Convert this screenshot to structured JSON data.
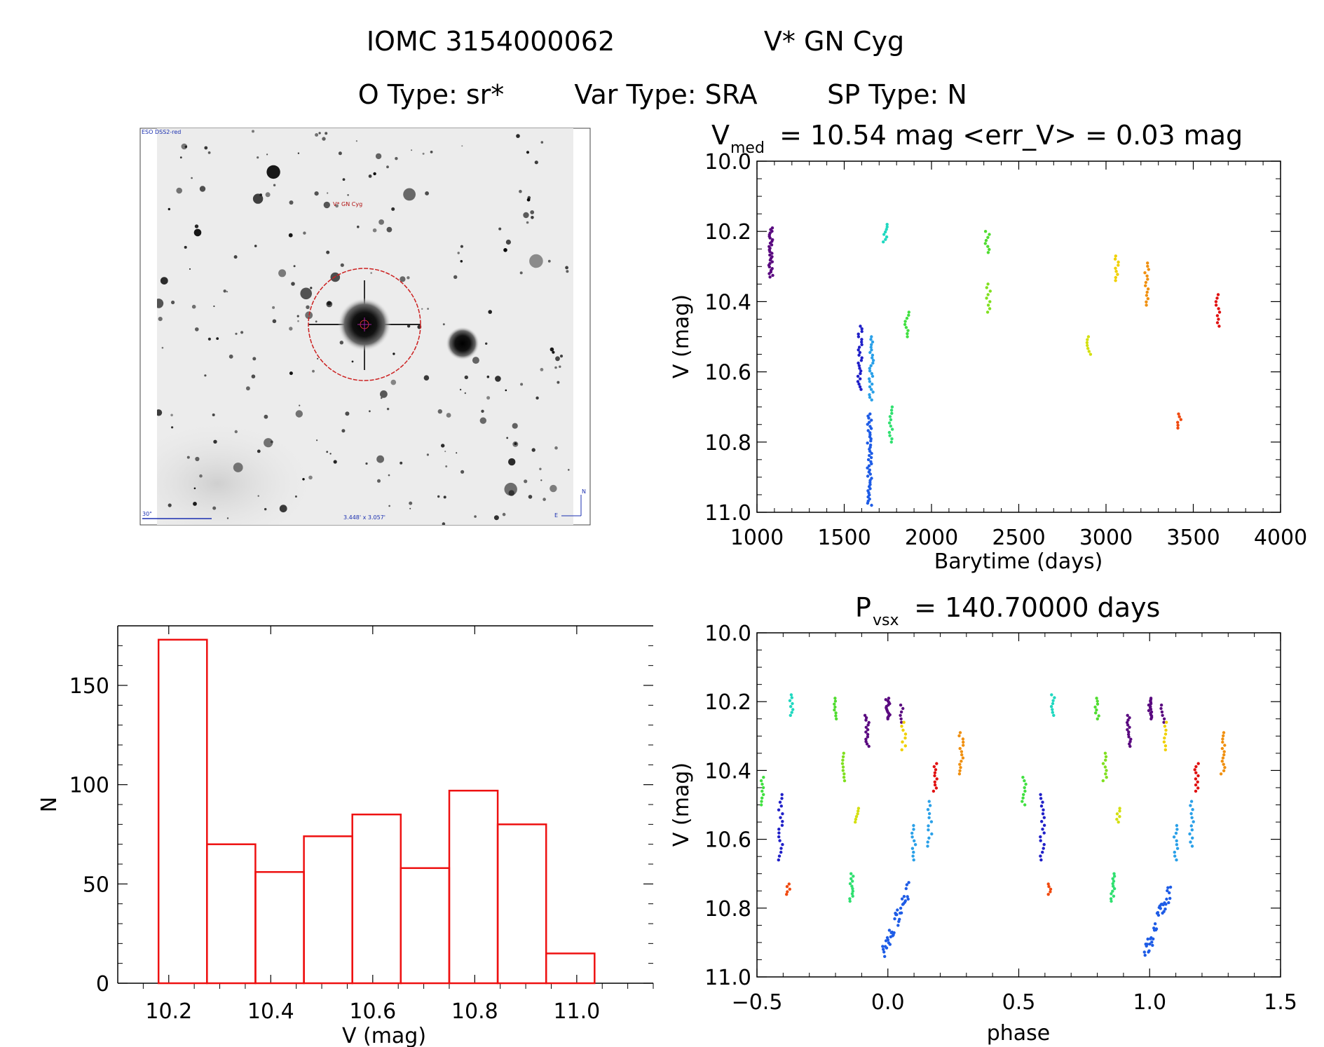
{
  "header": {
    "line1_id": "IOMC 3154000062",
    "line1_name": "V* GN Cyg",
    "line2_otype": "O Type: sr*",
    "line2_vartype": "Var Type: SRA",
    "line2_sptype": "SP Type: N"
  },
  "sky_image": {
    "survey_label": "ESO DSS2-red",
    "target_label": "V* GN Cyg",
    "scale_label": "30\"",
    "fov_label": "3.448' x 3.057'",
    "compass_n": "N",
    "compass_e": "E",
    "colors": {
      "circle": "#cc1f1f",
      "scale": "#1a2fb0",
      "label": "#b01010"
    }
  },
  "chart_data": [
    {
      "id": "light-curve",
      "type": "scatter",
      "title_prefix": "V",
      "title_sub": "med",
      "title_rest": " = 10.54 mag <err_V> = 0.03 mag",
      "xlabel": "Barytime (days)",
      "ylabel": "V (mag)",
      "xlim": [
        1000,
        4000
      ],
      "ylim": [
        11.0,
        10.0
      ],
      "xticks": [
        "1000",
        "1500",
        "2000",
        "2500",
        "3000",
        "3500",
        "4000"
      ],
      "yticks": [
        "10.0",
        "10.2",
        "10.4",
        "10.6",
        "10.8",
        "11.0"
      ],
      "groups": [
        {
          "x": 1080,
          "ymin": 10.19,
          "ymax": 10.33,
          "n": 30,
          "color": "#5a0a80"
        },
        {
          "x": 1590,
          "ymin": 10.47,
          "ymax": 10.65,
          "n": 25,
          "color": "#2020c8"
        },
        {
          "x": 1645,
          "ymin": 10.72,
          "ymax": 10.98,
          "n": 45,
          "color": "#1e5ce6"
        },
        {
          "x": 1655,
          "ymin": 10.5,
          "ymax": 10.68,
          "n": 25,
          "color": "#2aa0e8"
        },
        {
          "x": 1735,
          "ymin": 10.18,
          "ymax": 10.23,
          "n": 8,
          "color": "#20d8c0"
        },
        {
          "x": 1765,
          "ymin": 10.7,
          "ymax": 10.8,
          "n": 12,
          "color": "#30e070"
        },
        {
          "x": 1860,
          "ymin": 10.43,
          "ymax": 10.5,
          "n": 9,
          "color": "#40e040"
        },
        {
          "x": 2320,
          "ymin": 10.2,
          "ymax": 10.26,
          "n": 8,
          "color": "#50dc30"
        },
        {
          "x": 2325,
          "ymin": 10.35,
          "ymax": 10.43,
          "n": 9,
          "color": "#80e020"
        },
        {
          "x": 2900,
          "ymin": 10.5,
          "ymax": 10.55,
          "n": 7,
          "color": "#d4e010"
        },
        {
          "x": 3060,
          "ymin": 10.27,
          "ymax": 10.34,
          "n": 9,
          "color": "#f0d000"
        },
        {
          "x": 3235,
          "ymin": 10.29,
          "ymax": 10.41,
          "n": 14,
          "color": "#f09010"
        },
        {
          "x": 3420,
          "ymin": 10.72,
          "ymax": 10.76,
          "n": 6,
          "color": "#f04a10"
        },
        {
          "x": 3640,
          "ymin": 10.38,
          "ymax": 10.47,
          "n": 10,
          "color": "#e01010"
        }
      ]
    },
    {
      "id": "phase-curve",
      "type": "scatter",
      "title_prefix": "P",
      "title_sub": "vsx",
      "title_rest": " = 140.70000 days",
      "xlabel": "phase",
      "ylabel": "V (mag)",
      "xlim": [
        -0.5,
        1.5
      ],
      "ylim": [
        11.0,
        10.0
      ],
      "xticks": [
        "−0.5",
        "0.0",
        "0.5",
        "1.0",
        "1.5"
      ],
      "yticks": [
        "10.0",
        "10.2",
        "10.4",
        "10.6",
        "10.8",
        "11.0"
      ],
      "groups": [
        {
          "x": -0.48,
          "ymin": 10.42,
          "ymax": 10.5,
          "n": 9,
          "color": "#40e040"
        },
        {
          "x": -0.41,
          "ymin": 10.47,
          "ymax": 10.66,
          "n": 18,
          "color": "#2020c8"
        },
        {
          "x": -0.38,
          "ymin": 10.73,
          "ymax": 10.76,
          "n": 5,
          "color": "#f04a10"
        },
        {
          "x": -0.37,
          "ymin": 10.18,
          "ymax": 10.24,
          "n": 8,
          "color": "#20d8c0"
        },
        {
          "x": -0.2,
          "ymin": 10.19,
          "ymax": 10.25,
          "n": 8,
          "color": "#50dc30"
        },
        {
          "x": -0.17,
          "ymin": 10.35,
          "ymax": 10.43,
          "n": 9,
          "color": "#80e020"
        },
        {
          "x": -0.14,
          "ymin": 10.7,
          "ymax": 10.78,
          "n": 12,
          "color": "#30e070"
        },
        {
          "x": -0.12,
          "ymin": 10.51,
          "ymax": 10.55,
          "n": 6,
          "color": "#d4e010"
        },
        {
          "x": -0.08,
          "ymin": 10.24,
          "ymax": 10.33,
          "n": 14,
          "color": "#5a0a80"
        },
        {
          "x": 0.0,
          "ymin": 10.19,
          "ymax": 10.25,
          "n": 16,
          "color": "#5a0a80"
        },
        {
          "x": 0.05,
          "ymin": 10.21,
          "ymax": 10.26,
          "n": 6,
          "color": "#5a0a80"
        },
        {
          "x": 0.06,
          "ymin": 10.26,
          "ymax": 10.34,
          "n": 8,
          "color": "#f0d000"
        },
        {
          "x": 0.1,
          "ymin": 10.56,
          "ymax": 10.66,
          "n": 10,
          "color": "#2aa0e8"
        },
        {
          "x": 0.16,
          "ymin": 10.49,
          "ymax": 10.62,
          "n": 12,
          "color": "#2aa0e8"
        },
        {
          "x": 0.18,
          "ymin": 10.38,
          "ymax": 10.46,
          "n": 10,
          "color": "#e01010"
        },
        {
          "x": 0.28,
          "ymin": 10.29,
          "ymax": 10.41,
          "n": 14,
          "color": "#f09010"
        }
      ],
      "trend": {
        "x0": -0.02,
        "x1": 0.08,
        "y0": 10.94,
        "y1": 10.74,
        "n": 40,
        "color": "#1e5ce6"
      }
    },
    {
      "id": "histogram",
      "type": "bar",
      "xlabel": "V (mag)",
      "ylabel": "N",
      "xlim": [
        10.1,
        11.15
      ],
      "ylim": [
        0,
        180
      ],
      "xticks": [
        "10.2",
        "10.4",
        "10.6",
        "10.8",
        "11.0"
      ],
      "yticks": [
        "0",
        "50",
        "100",
        "150"
      ],
      "bin_edges": [
        10.18,
        10.275,
        10.37,
        10.465,
        10.56,
        10.655,
        10.75,
        10.845,
        10.94,
        11.035
      ],
      "counts": [
        173,
        70,
        56,
        74,
        85,
        58,
        97,
        80,
        15
      ],
      "color": "#ee1111"
    }
  ]
}
